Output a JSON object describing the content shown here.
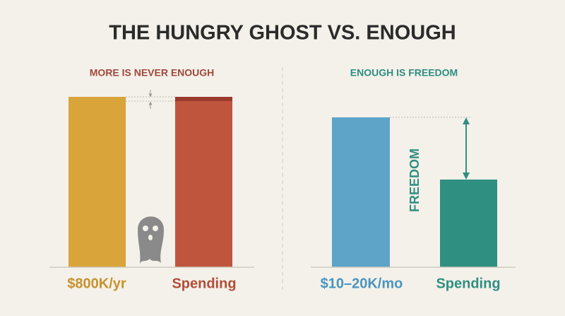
{
  "title": "THE HUNGRY GHOST VS. ENOUGH",
  "left_panel": {
    "heading": "MORE IS NEVER ENOUGH",
    "labels": [
      "$800K/yr",
      "Spending"
    ]
  },
  "right_panel": {
    "heading": "ENOUGH IS FREEDOM",
    "labels": [
      "$10–20K/mo",
      "Spending"
    ],
    "gap_label": "FREEDOM"
  }
}
